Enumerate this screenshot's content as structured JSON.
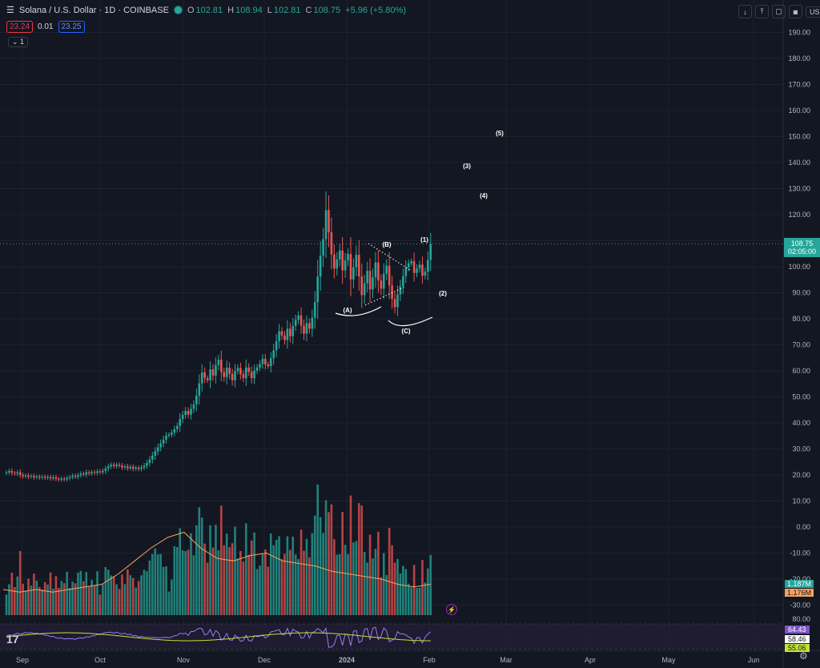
{
  "header": {
    "menu_icon": "menu-icon",
    "title": "Solana / U.S. Dollar · 1D · COINBASE",
    "o_label": "O",
    "o_value": "102.81",
    "h_label": "H",
    "h_value": "108.94",
    "l_label": "L",
    "l_value": "102.81",
    "c_label": "C",
    "c_value": "108.75",
    "change": "+5.96 (+5.80%)",
    "sell_price": "23.24",
    "spread": "0.01",
    "buy_price": "23.25",
    "collapse_label": "1"
  },
  "toolbar": {
    "currency": "USD",
    "buttons": [
      "down-arrow-icon",
      "upload-icon",
      "fullscreen-icon",
      "camera-icon"
    ]
  },
  "colors": {
    "up": "#26a69a",
    "down": "#ef5350",
    "vol_ma": "#f7a35c",
    "rsi": "#9c7cf4",
    "rsi_ma": "#c5e13a",
    "bg": "#131722"
  },
  "price_tag": {
    "value": "108.75",
    "countdown": "02:05:00"
  },
  "volume_tags": {
    "volume": "1.187M",
    "ma": "1.176M"
  },
  "rsi_tags": {
    "top": "64.43",
    "mid": "58.46",
    "low": "55.06"
  },
  "chart_data": {
    "type": "candlestick",
    "title": "Solana / U.S. Dollar · 1D · COINBASE",
    "y_ticks": [
      "190.00",
      "180.00",
      "170.00",
      "160.00",
      "150.00",
      "140.00",
      "130.00",
      "120.00",
      "110.00",
      "100.00",
      "90.00",
      "80.00",
      "70.00",
      "60.00",
      "50.00",
      "40.00",
      "30.00",
      "20.00",
      "10.00",
      "0.00",
      "-10.00",
      "-20.00",
      "-30.00"
    ],
    "rsi_tick": "80.00",
    "x_ticks": [
      "Sep",
      "Oct",
      "Nov",
      "Dec",
      "2024",
      "Feb",
      "Mar",
      "Apr",
      "May",
      "Jun"
    ],
    "close_series": [
      21,
      21.5,
      20.8,
      20.5,
      21,
      20,
      19.5,
      19.8,
      19.3,
      19.6,
      19.1,
      19.4,
      19,
      19.3,
      18.9,
      19.2,
      18.7,
      19.1,
      18.5,
      18.2,
      18.6,
      18.3,
      18.8,
      19.2,
      19.7,
      19.3,
      19.9,
      20.5,
      20.2,
      21,
      20.6,
      21.1,
      20.8,
      21.4,
      21.1,
      21.6,
      22.5,
      23.3,
      23.9,
      23.4,
      24,
      23.6,
      22.9,
      23.3,
      22.6,
      23.1,
      22.4,
      22.8,
      22.3,
      22.9,
      23.6,
      24.6,
      25.9,
      27.4,
      29.1,
      30.6,
      32.1,
      33.6,
      35.1,
      35.5,
      36.3,
      37.6,
      38.8,
      41.5,
      43.1,
      44.6,
      43.2,
      45.4,
      47.1,
      50.5,
      55.2,
      59.4,
      57.2,
      56.4,
      60.6,
      58.2,
      62.2,
      64.3,
      59.5,
      57.6,
      61.2,
      58.8,
      56.4,
      59.9,
      61.1,
      58.7,
      57.2,
      61.3,
      59.6,
      57.2,
      60.1,
      61.3,
      62.6,
      64.6,
      62.5,
      61.8,
      64.8,
      67.9,
      71.4,
      75.2,
      73.6,
      71.8,
      76.2,
      73.3,
      77.3,
      79.6,
      81.3,
      77.3,
      74.3,
      78.3,
      76.2,
      80.4,
      86.4,
      96.2,
      104.3,
      110.6,
      121.7,
      113.2,
      104.7,
      99.3,
      102.8,
      106.2,
      98.6,
      102.4,
      104.9,
      95.1,
      99.8,
      104.6,
      96.3,
      89.1,
      93.6,
      98.4,
      91.3,
      95.9,
      101.6,
      94.7,
      91.6,
      97.3,
      100.4,
      92.8,
      87.6,
      84.5,
      89.3,
      92.5,
      96.4,
      99.8,
      101.3,
      102.1,
      97.6,
      99.3,
      100.8,
      96.6,
      98.1,
      102.6,
      108.75
    ],
    "volume_ma": [
      -24,
      -25,
      -24,
      -25,
      -24,
      -23,
      -22,
      -18,
      -13,
      -8,
      -4,
      -2,
      -8,
      -12,
      -13,
      -11,
      -10,
      -13,
      -14,
      -15,
      -17,
      -18,
      -19,
      -20,
      -22,
      -23,
      -22
    ],
    "annotations": [
      "(A)",
      "(B)",
      "(C)",
      "(1)",
      "(2)",
      "(3)",
      "(4)",
      "(5)"
    ]
  }
}
